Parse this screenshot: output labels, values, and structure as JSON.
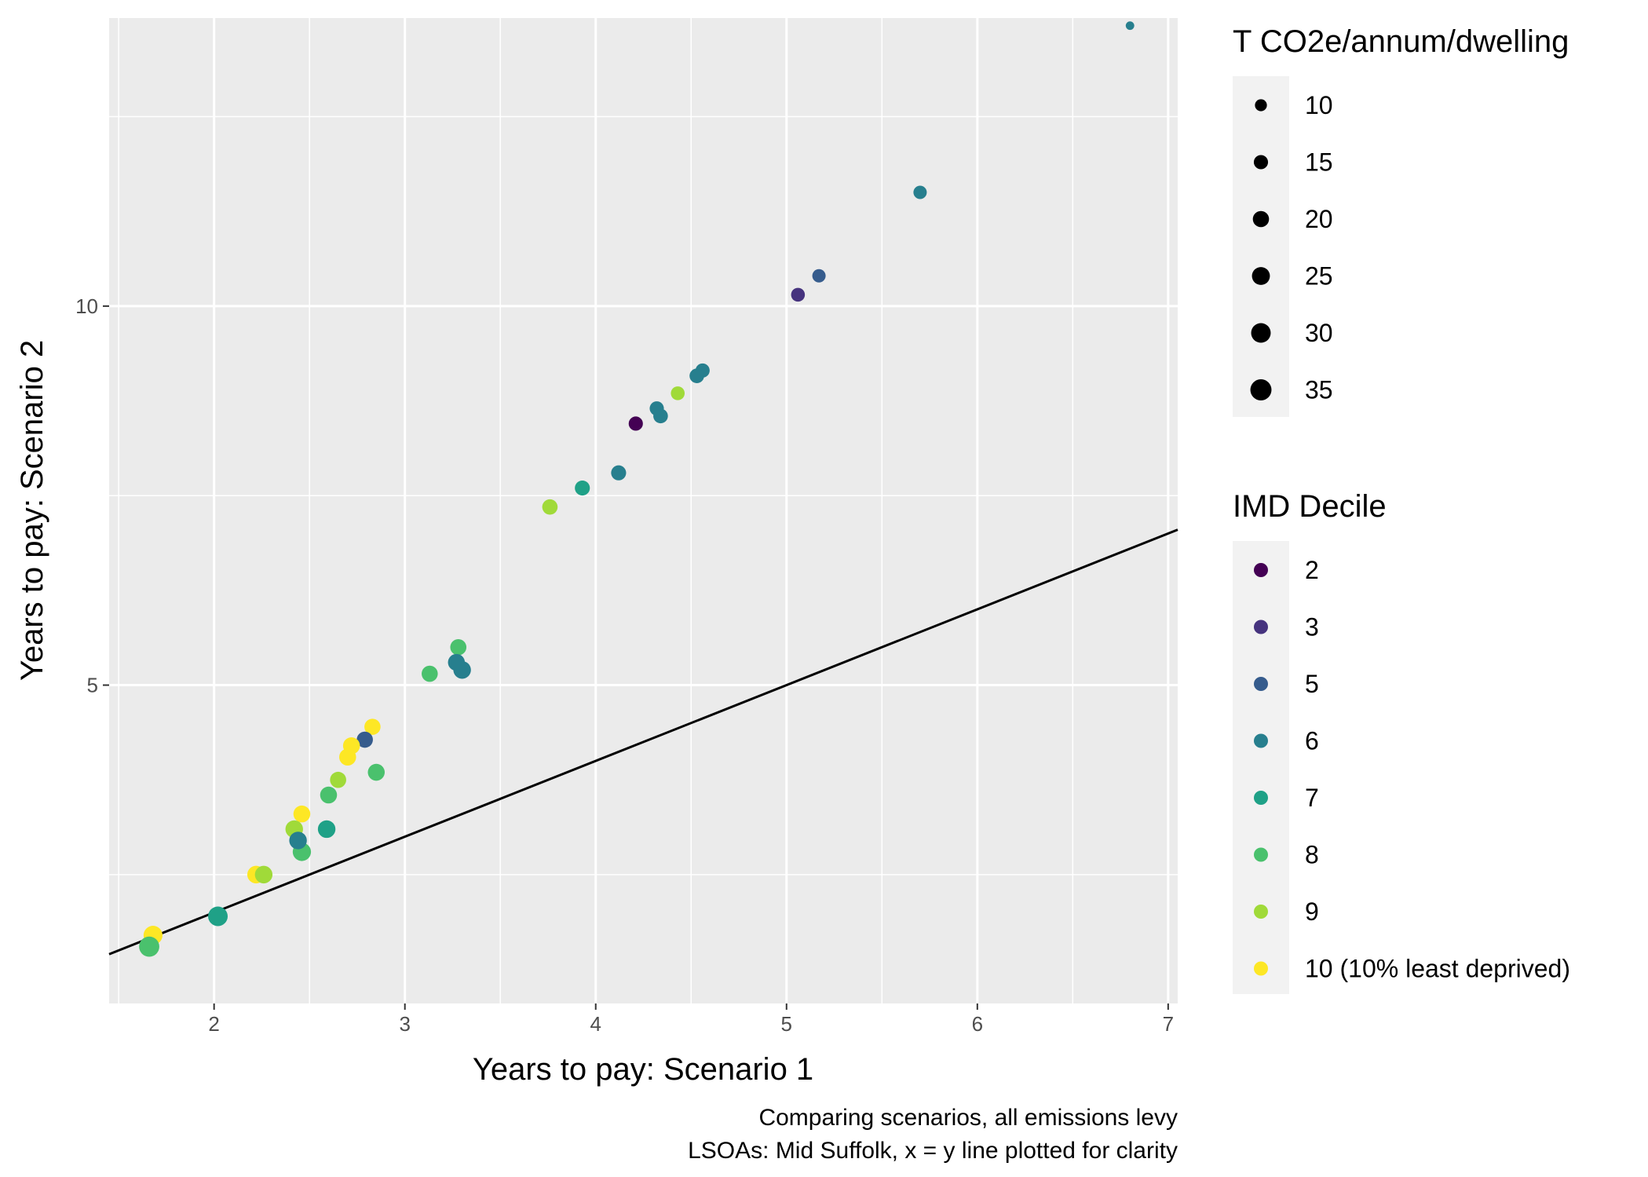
{
  "chart_data": {
    "type": "scatter",
    "xlabel": "Years to pay: Scenario 1",
    "ylabel": "Years to pay: Scenario 2",
    "caption_lines": [
      "Comparing scenarios, all emissions levy",
      "LSOAs: Mid Suffolk, x = y line plotted for clarity"
    ],
    "xlim": [
      1.45,
      7.05
    ],
    "ylim": [
      0.8,
      13.8
    ],
    "x_ticks": [
      2,
      3,
      4,
      5,
      6,
      7
    ],
    "y_ticks": [
      5,
      10
    ],
    "x_tick_labels": [
      "2",
      "3",
      "4",
      "5",
      "6",
      "7"
    ],
    "y_tick_labels": [
      "5",
      "10"
    ],
    "grid": true,
    "panel_background": "#ebebeb",
    "reference_line": "x = y",
    "size_legend": {
      "title": "T CO2e/annum/dwelling",
      "values": [
        10,
        15,
        20,
        25,
        30,
        35
      ],
      "labels": [
        "10",
        "15",
        "20",
        "25",
        "30",
        "35"
      ]
    },
    "color_legend": {
      "title": "IMD Decile",
      "levels": [
        2,
        3,
        5,
        6,
        7,
        8,
        9,
        10
      ],
      "labels": [
        "2",
        "3",
        "5",
        "6",
        "7",
        "8",
        "9",
        "10 (10% least deprived)"
      ],
      "colors": {
        "2": "#440154",
        "3": "#46337e",
        "5": "#365c8d",
        "6": "#277f8e",
        "7": "#1fa187",
        "8": "#4ac16d",
        "9": "#a0da39",
        "10": "#fde725"
      }
    },
    "points": [
      {
        "x": 6.8,
        "y": 13.7,
        "size": 4,
        "decile": 6
      },
      {
        "x": 5.7,
        "y": 11.5,
        "size": 13,
        "decile": 6
      },
      {
        "x": 5.17,
        "y": 10.4,
        "size": 13,
        "decile": 5
      },
      {
        "x": 5.06,
        "y": 10.15,
        "size": 14,
        "decile": 3
      },
      {
        "x": 4.56,
        "y": 9.15,
        "size": 15,
        "decile": 6
      },
      {
        "x": 4.53,
        "y": 9.08,
        "size": 16,
        "decile": 6
      },
      {
        "x": 4.43,
        "y": 8.85,
        "size": 14,
        "decile": 9
      },
      {
        "x": 4.34,
        "y": 8.55,
        "size": 16,
        "decile": 6
      },
      {
        "x": 4.32,
        "y": 8.65,
        "size": 15,
        "decile": 6
      },
      {
        "x": 4.21,
        "y": 8.45,
        "size": 15,
        "decile": 2
      },
      {
        "x": 4.12,
        "y": 7.8,
        "size": 17,
        "decile": 6
      },
      {
        "x": 3.93,
        "y": 7.6,
        "size": 17,
        "decile": 7
      },
      {
        "x": 3.76,
        "y": 7.35,
        "size": 18,
        "decile": 9
      },
      {
        "x": 3.28,
        "y": 5.5,
        "size": 20,
        "decile": 8
      },
      {
        "x": 3.3,
        "y": 5.2,
        "size": 24,
        "decile": 6
      },
      {
        "x": 3.27,
        "y": 5.3,
        "size": 22,
        "decile": 6
      },
      {
        "x": 3.13,
        "y": 5.15,
        "size": 20,
        "decile": 8
      },
      {
        "x": 2.83,
        "y": 4.45,
        "size": 20,
        "decile": 10
      },
      {
        "x": 2.79,
        "y": 4.28,
        "size": 20,
        "decile": 5
      },
      {
        "x": 2.72,
        "y": 4.2,
        "size": 22,
        "decile": 10
      },
      {
        "x": 2.7,
        "y": 4.05,
        "size": 22,
        "decile": 10
      },
      {
        "x": 2.85,
        "y": 3.85,
        "size": 22,
        "decile": 8
      },
      {
        "x": 2.65,
        "y": 3.75,
        "size": 20,
        "decile": 9
      },
      {
        "x": 2.6,
        "y": 3.55,
        "size": 22,
        "decile": 8
      },
      {
        "x": 2.46,
        "y": 3.3,
        "size": 22,
        "decile": 10
      },
      {
        "x": 2.59,
        "y": 3.1,
        "size": 24,
        "decile": 7
      },
      {
        "x": 2.42,
        "y": 3.1,
        "size": 24,
        "decile": 9
      },
      {
        "x": 2.46,
        "y": 2.8,
        "size": 26,
        "decile": 8
      },
      {
        "x": 2.44,
        "y": 2.95,
        "size": 24,
        "decile": 6
      },
      {
        "x": 2.22,
        "y": 2.5,
        "size": 24,
        "decile": 10
      },
      {
        "x": 2.26,
        "y": 2.5,
        "size": 24,
        "decile": 9
      },
      {
        "x": 2.02,
        "y": 1.95,
        "size": 30,
        "decile": 7
      },
      {
        "x": 1.68,
        "y": 1.7,
        "size": 28,
        "decile": 10
      },
      {
        "x": 1.66,
        "y": 1.55,
        "size": 32,
        "decile": 8
      }
    ]
  }
}
